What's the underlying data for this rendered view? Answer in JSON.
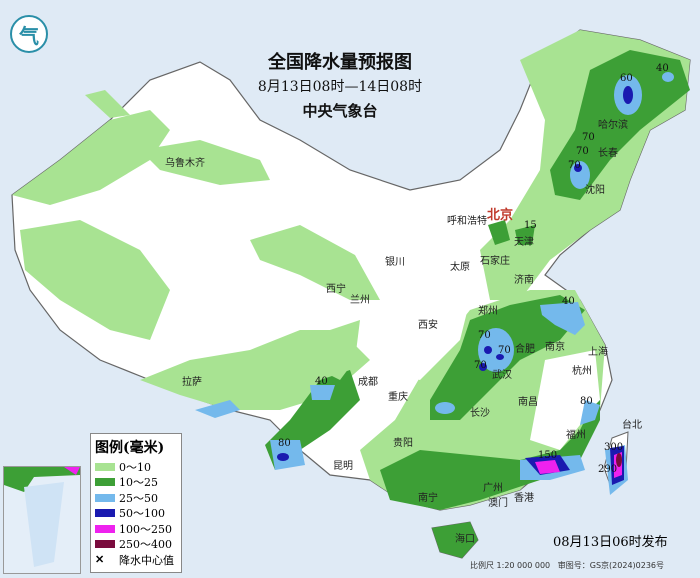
{
  "header": {
    "title": "全国降水量预报图",
    "period": "8月13日08时—14日08时",
    "agency": "中央气象台",
    "logo_text": "气"
  },
  "legend": {
    "title": "图例(毫米)",
    "items": [
      {
        "label": "0～10",
        "color": "#a8e392"
      },
      {
        "label": "10～25",
        "color": "#3d9f36"
      },
      {
        "label": "25～50",
        "color": "#74b9ec"
      },
      {
        "label": "50～100",
        "color": "#1a1ab0"
      },
      {
        "label": "100～250",
        "color": "#ee22ee"
      },
      {
        "label": "250～400",
        "color": "#7a0b3d"
      }
    ],
    "center_label": "降水中心值"
  },
  "cities": [
    "乌鲁木齐",
    "哈尔滨",
    "长春",
    "沈阳",
    "呼和浩特",
    "北京",
    "天津",
    "石家庄",
    "太原",
    "银川",
    "济南",
    "西宁",
    "兰州",
    "郑州",
    "西安",
    "合肥",
    "南京",
    "上海",
    "武汉",
    "杭州",
    "成都",
    "拉萨",
    "重庆",
    "南昌",
    "长沙",
    "福州",
    "台北",
    "贵阳",
    "昆明",
    "南宁",
    "广州",
    "香港",
    "澳门",
    "海口"
  ],
  "rain_centers": [
    "60",
    "40",
    "70",
    "70",
    "70",
    "15",
    "40",
    "70",
    "70",
    "70",
    "40",
    "80",
    "80",
    "150",
    "300",
    "290"
  ],
  "footer": {
    "published": "08月13日06时发布",
    "scale": "比例尺 1:20 000 000",
    "approval": "审图号：GS京(2024)0236号"
  }
}
